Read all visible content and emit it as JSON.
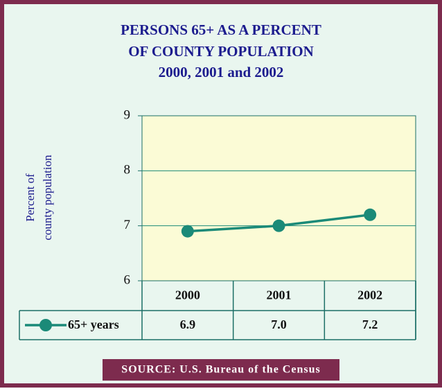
{
  "chart_data": {
    "type": "line",
    "title": [
      "PERSONS 65+ AS A PERCENT",
      "OF COUNTY POPULATION",
      "2000, 2001 and 2002"
    ],
    "y_label": [
      "Percent of",
      "county population"
    ],
    "categories": [
      "2000",
      "2001",
      "2002"
    ],
    "series": [
      {
        "name": "65+ years",
        "color": "#1b8a78",
        "values": [
          6.9,
          7.0,
          7.2
        ],
        "value_labels": [
          "6.9",
          "7.0",
          "7.2"
        ]
      }
    ],
    "ylim": [
      6,
      9
    ],
    "yticks": [
      6,
      7,
      8,
      9
    ],
    "grid": true,
    "source": "SOURCE:  U.S. Bureau of the Census"
  }
}
